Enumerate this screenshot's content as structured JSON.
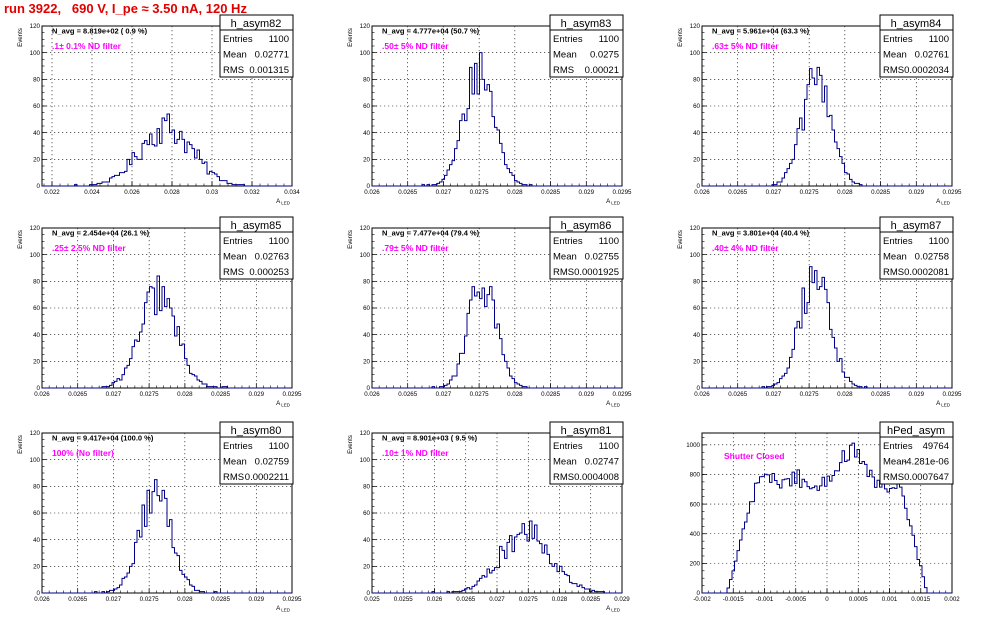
{
  "page_title": "run 3922,   690 V, I_pe ≈ 3.50 nA, 120 Hz",
  "colors": {
    "title": "#e00000",
    "annotation": "#ff00ff",
    "histogram": "#00008b",
    "grid": "#000000"
  },
  "chart_data": [
    {
      "type": "histogram",
      "title": "h_asym82",
      "xlabel": "A_LED",
      "ylabel": "Events",
      "xlim": [
        0.0215,
        0.034
      ],
      "ylim": [
        0,
        120
      ],
      "xticks": [
        "0.022",
        "0.024",
        "0.026",
        "0.028",
        "0.03",
        "0.032",
        "0.034"
      ],
      "xtick_values": [
        0.022,
        0.024,
        0.026,
        0.028,
        0.03,
        0.032,
        0.034
      ],
      "yticks": [
        0,
        20,
        40,
        60,
        80,
        100,
        120
      ],
      "grid": true,
      "navg": "N_avg = 8.819e+02 ( 0.9 %)",
      "annotation": ".1± 0.1% ND filter",
      "stats": {
        "entries_label": "Entries",
        "entries": "1100",
        "mean_label": "Mean",
        "mean": "0.02771",
        "rms_label": "RMS",
        "rms": "0.001315"
      },
      "shape": {
        "kind": "gauss",
        "mean": 0.02771,
        "sigma": 0.001315,
        "peak": 44,
        "bins": 100,
        "jitter": 0.28
      }
    },
    {
      "type": "histogram",
      "title": "h_asym83",
      "xlabel": "A_LED",
      "ylabel": "Events",
      "xlim": [
        0.026,
        0.0295
      ],
      "ylim": [
        0,
        120
      ],
      "xticks": [
        "0.026",
        "0.0265",
        "0.027",
        "0.0275",
        "0.028",
        "0.0285",
        "0.029",
        "0.0295"
      ],
      "xtick_values": [
        0.026,
        0.0265,
        0.027,
        0.0275,
        0.028,
        0.0285,
        0.029,
        0.0295
      ],
      "yticks": [
        0,
        20,
        40,
        60,
        80,
        100,
        120
      ],
      "grid": true,
      "navg": "N_avg = 4.777e+04 (50.7 %)",
      "annotation": ".50± 5% ND filter",
      "stats": {
        "entries_label": "Entries",
        "entries": "1100",
        "mean_label": "Mean",
        "mean": "0.0275",
        "rms_label": "RMS",
        "rms": "0.00021"
      },
      "shape": {
        "kind": "gauss",
        "mean": 0.0275,
        "sigma": 0.00021,
        "peak": 88,
        "bins": 100,
        "jitter": 0.22
      }
    },
    {
      "type": "histogram",
      "title": "h_asym84",
      "xlabel": "A_LED",
      "ylabel": "Events",
      "xlim": [
        0.026,
        0.0295
      ],
      "ylim": [
        0,
        120
      ],
      "xticks": [
        "0.026",
        "0.0265",
        "0.027",
        "0.0275",
        "0.028",
        "0.0285",
        "0.029",
        "0.0295"
      ],
      "xtick_values": [
        0.026,
        0.0265,
        0.027,
        0.0275,
        0.028,
        0.0285,
        0.029,
        0.0295
      ],
      "yticks": [
        0,
        20,
        40,
        60,
        80,
        100,
        120
      ],
      "grid": true,
      "navg": "N_avg = 5.961e+04 (63.3 %)",
      "annotation": ".63± 5% ND filter",
      "stats": {
        "entries_label": "Entries",
        "entries": "1100",
        "mean_label": "Mean",
        "mean": "0.02761",
        "rms_label": "RMS",
        "rms": "0.0002034"
      },
      "shape": {
        "kind": "gauss",
        "mean": 0.02761,
        "sigma": 0.0002034,
        "peak": 82,
        "bins": 100,
        "jitter": 0.22
      }
    },
    {
      "type": "histogram",
      "title": "h_asym85",
      "xlabel": "A_LED",
      "ylabel": "Events",
      "xlim": [
        0.026,
        0.0295
      ],
      "ylim": [
        0,
        120
      ],
      "xticks": [
        "0.026",
        "0.0265",
        "0.027",
        "0.0275",
        "0.028",
        "0.0285",
        "0.029",
        "0.0295"
      ],
      "xtick_values": [
        0.026,
        0.0265,
        0.027,
        0.0275,
        0.028,
        0.0285,
        0.029,
        0.0295
      ],
      "yticks": [
        0,
        20,
        40,
        60,
        80,
        100,
        120
      ],
      "grid": true,
      "navg": "N_avg = 2.454e+04 (26.1 %)",
      "annotation": ".25± 2.5% ND filter",
      "stats": {
        "entries_label": "Entries",
        "entries": "1100",
        "mean_label": "Mean",
        "mean": "0.02763",
        "rms_label": "RMS",
        "rms": "0.000253"
      },
      "shape": {
        "kind": "gauss",
        "mean": 0.02763,
        "sigma": 0.000253,
        "peak": 70,
        "bins": 100,
        "jitter": 0.22
      }
    },
    {
      "type": "histogram",
      "title": "h_asym86",
      "xlabel": "A_LED",
      "ylabel": "Events",
      "xlim": [
        0.026,
        0.0295
      ],
      "ylim": [
        0,
        120
      ],
      "xticks": [
        "0.026",
        "0.0265",
        "0.027",
        "0.0275",
        "0.028",
        "0.0285",
        "0.029",
        "0.0295"
      ],
      "xtick_values": [
        0.026,
        0.0265,
        0.027,
        0.0275,
        0.028,
        0.0285,
        0.029,
        0.0295
      ],
      "yticks": [
        0,
        20,
        40,
        60,
        80,
        100,
        120
      ],
      "grid": true,
      "navg": "N_avg = 7.477e+04 (79.4 %)",
      "annotation": ".79± 5% ND filter",
      "stats": {
        "entries_label": "Entries",
        "entries": "1100",
        "mean_label": "Mean",
        "mean": "0.02755",
        "rms_label": "RMS",
        "rms": "0.0001925"
      },
      "shape": {
        "kind": "gauss",
        "mean": 0.02755,
        "sigma": 0.0001925,
        "peak": 80,
        "bins": 100,
        "jitter": 0.22
      }
    },
    {
      "type": "histogram",
      "title": "h_asym87",
      "xlabel": "A_LED",
      "ylabel": "Events",
      "xlim": [
        0.026,
        0.0295
      ],
      "ylim": [
        0,
        120
      ],
      "xticks": [
        "0.026",
        "0.0265",
        "0.027",
        "0.0275",
        "0.028",
        "0.0285",
        "0.029",
        "0.0295"
      ],
      "xtick_values": [
        0.026,
        0.0265,
        0.027,
        0.0275,
        0.028,
        0.0285,
        0.029,
        0.0295
      ],
      "yticks": [
        0,
        20,
        40,
        60,
        80,
        100,
        120
      ],
      "grid": true,
      "navg": "N_avg = 3.801e+04 (40.4 %)",
      "annotation": ".40± 4% ND filter",
      "stats": {
        "entries_label": "Entries",
        "entries": "1100",
        "mean_label": "Mean",
        "mean": "0.02758",
        "rms_label": "RMS",
        "rms": "0.0002081"
      },
      "shape": {
        "kind": "gauss",
        "mean": 0.02758,
        "sigma": 0.0002081,
        "peak": 85,
        "bins": 100,
        "jitter": 0.22
      }
    },
    {
      "type": "histogram",
      "title": "h_asym80",
      "xlabel": "A_LED",
      "ylabel": "Events",
      "xlim": [
        0.026,
        0.0295
      ],
      "ylim": [
        0,
        120
      ],
      "xticks": [
        "0.026",
        "0.0265",
        "0.027",
        "0.0275",
        "0.028",
        "0.0285",
        "0.029",
        "0.0295"
      ],
      "xtick_values": [
        0.026,
        0.0265,
        0.027,
        0.0275,
        0.028,
        0.0285,
        0.029,
        0.0295
      ],
      "yticks": [
        0,
        20,
        40,
        60,
        80,
        100,
        120
      ],
      "grid": true,
      "navg": "N_avg = 9.417e+04 (100.0 %)",
      "annotation": "100% (No filter)",
      "stats": {
        "entries_label": "Entries",
        "entries": "1100",
        "mean_label": "Mean",
        "mean": "0.02759",
        "rms_label": "RMS",
        "rms": "0.0002211"
      },
      "shape": {
        "kind": "gauss",
        "mean": 0.02759,
        "sigma": 0.0002211,
        "peak": 75,
        "bins": 100,
        "jitter": 0.22
      }
    },
    {
      "type": "histogram",
      "title": "h_asym81",
      "xlabel": "A_LED",
      "ylabel": "Events",
      "xlim": [
        0.025,
        0.029
      ],
      "ylim": [
        0,
        120
      ],
      "xticks": [
        "0.025",
        "0.0255",
        "0.026",
        "0.0265",
        "0.027",
        "0.0275",
        "0.028",
        "0.0285",
        "0.029"
      ],
      "xtick_values": [
        0.025,
        0.0255,
        0.026,
        0.0265,
        0.027,
        0.0275,
        0.028,
        0.0285,
        0.029
      ],
      "yticks": [
        0,
        20,
        40,
        60,
        80,
        100,
        120
      ],
      "grid": true,
      "navg": "N_avg = 8.901e+03 ( 9.5 %)",
      "annotation": ".10± 1% ND filter",
      "stats": {
        "entries_label": "Entries",
        "entries": "1100",
        "mean_label": "Mean",
        "mean": "0.02747",
        "rms_label": "RMS",
        "rms": "0.0004008"
      },
      "shape": {
        "kind": "gauss",
        "mean": 0.02747,
        "sigma": 0.0004008,
        "peak": 47,
        "bins": 100,
        "jitter": 0.26
      }
    },
    {
      "type": "histogram",
      "title": "hPed_asym",
      "xlabel": "",
      "ylabel": "",
      "xlim": [
        -0.002,
        0.002
      ],
      "ylim": [
        0,
        1080
      ],
      "xticks": [
        "-0.002",
        "-0.0015",
        "-0.001",
        "-0.0005",
        "0",
        "0.0005",
        "0.001",
        "0.0015",
        "0.002"
      ],
      "xtick_values": [
        -0.002,
        -0.0015,
        -0.001,
        -0.0005,
        0,
        0.0005,
        0.001,
        0.0015,
        0.002
      ],
      "yticks": [
        0,
        200,
        400,
        600,
        800,
        1000
      ],
      "grid": true,
      "navg": "",
      "annotation": "Shutter Closed",
      "stats": {
        "entries_label": "Entries",
        "entries": "49764",
        "mean_label": "Mean",
        "mean": "-4.281e-06",
        "rms_label": "RMS",
        "rms": "0.0007647"
      },
      "shape": {
        "kind": "plateau",
        "bins": 100,
        "jitter": 0.07,
        "edges": [
          -0.00155,
          0.00155
        ],
        "edge_width": 0.00013,
        "profile": [
          [
            -0.0016,
            0
          ],
          [
            -0.0014,
            320
          ],
          [
            -0.0012,
            620
          ],
          [
            -0.00105,
            830
          ],
          [
            -0.0009,
            770
          ],
          [
            -0.0007,
            730
          ],
          [
            -0.0005,
            790
          ],
          [
            -0.0003,
            730
          ],
          [
            -0.0001,
            720
          ],
          [
            0.0001,
            830
          ],
          [
            0.0003,
            930
          ],
          [
            0.00045,
            960
          ],
          [
            0.0006,
            820
          ],
          [
            0.0008,
            740
          ],
          [
            0.001,
            690
          ],
          [
            0.00115,
            720
          ],
          [
            0.0013,
            520
          ],
          [
            0.00145,
            260
          ],
          [
            0.0016,
            0
          ]
        ]
      }
    }
  ]
}
